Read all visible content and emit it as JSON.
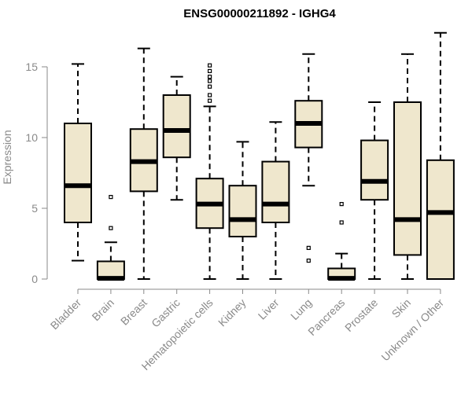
{
  "chart_data": {
    "type": "boxplot",
    "title": "ENSG00000211892 - IGHG4",
    "ylabel": "Expression",
    "xlabel": "",
    "ylim": [
      0,
      17.5
    ],
    "yticks": [
      0,
      5,
      10,
      15
    ],
    "grid": false,
    "box_color": "#efe7cd",
    "categories": [
      "Bladder",
      "Brain",
      "Breast",
      "Gastric",
      "Hematopoietic cells",
      "Kidney",
      "Liver",
      "Lung",
      "Pancreas",
      "Prostate",
      "Skin",
      "Unknown / Other"
    ],
    "boxes": [
      {
        "category": "Bladder",
        "whisker_low": 1.3,
        "q1": 4.0,
        "median": 6.6,
        "q3": 11.0,
        "whisker_high": 15.2,
        "outliers": []
      },
      {
        "category": "Brain",
        "whisker_low": 0.0,
        "q1": 0.0,
        "median": 0.05,
        "q3": 1.25,
        "whisker_high": 2.6,
        "outliers": [
          3.6,
          5.8
        ]
      },
      {
        "category": "Breast",
        "whisker_low": 0.0,
        "q1": 6.2,
        "median": 8.3,
        "q3": 10.6,
        "whisker_high": 16.3,
        "outliers": []
      },
      {
        "category": "Gastric",
        "whisker_low": 5.6,
        "q1": 8.6,
        "median": 10.5,
        "q3": 13.0,
        "whisker_high": 14.3,
        "outliers": []
      },
      {
        "category": "Hematopoietic cells",
        "whisker_low": 0.0,
        "q1": 3.6,
        "median": 5.3,
        "q3": 7.1,
        "whisker_high": 12.2,
        "outliers": [
          12.6,
          13.0,
          13.6,
          14.0,
          14.3,
          14.7,
          15.1
        ]
      },
      {
        "category": "Kidney",
        "whisker_low": 0.0,
        "q1": 3.0,
        "median": 4.2,
        "q3": 6.6,
        "whisker_high": 9.7,
        "outliers": []
      },
      {
        "category": "Liver",
        "whisker_low": 0.0,
        "q1": 4.0,
        "median": 5.3,
        "q3": 8.3,
        "whisker_high": 11.1,
        "outliers": []
      },
      {
        "category": "Lung",
        "whisker_low": 6.6,
        "q1": 9.3,
        "median": 11.0,
        "q3": 12.6,
        "whisker_high": 15.9,
        "outliers": [
          1.3,
          2.2
        ]
      },
      {
        "category": "Pancreas",
        "whisker_low": 0.0,
        "q1": 0.0,
        "median": 0.05,
        "q3": 0.75,
        "whisker_high": 1.8,
        "outliers": [
          4.0,
          5.3
        ]
      },
      {
        "category": "Prostate",
        "whisker_low": 0.0,
        "q1": 5.6,
        "median": 6.9,
        "q3": 9.8,
        "whisker_high": 12.5,
        "outliers": []
      },
      {
        "category": "Skin",
        "whisker_low": 0.0,
        "q1": 1.7,
        "median": 4.2,
        "q3": 12.5,
        "whisker_high": 15.9,
        "outliers": []
      },
      {
        "category": "Unknown / Other",
        "whisker_low": 0.0,
        "q1": 0.0,
        "median": 4.7,
        "q3": 8.4,
        "whisker_high": 17.4,
        "outliers": []
      }
    ]
  }
}
